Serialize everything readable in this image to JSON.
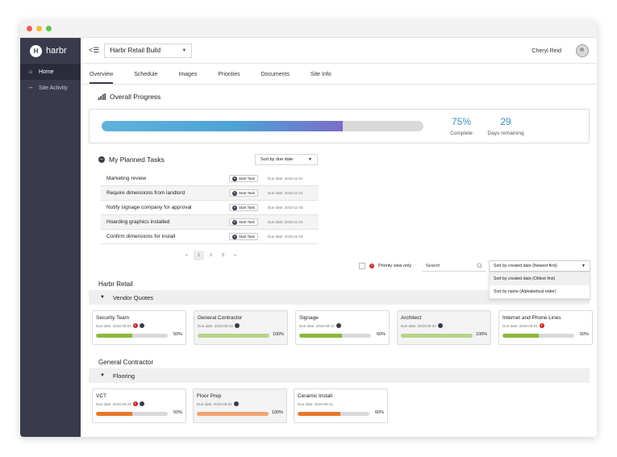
{
  "colors": {
    "sidebar": "#393b4d",
    "accent_blue": "#3d8fbf",
    "green": "#8bb83c",
    "orange": "#e8772b",
    "light_orange": "#f2a470",
    "red": "#c62828"
  },
  "sidebar": {
    "logo": "harbr",
    "items": [
      {
        "label": "Home",
        "icon": "home-icon",
        "active": true
      },
      {
        "label": "Site Activity",
        "icon": "chart-icon",
        "active": false
      }
    ]
  },
  "header": {
    "project": "Harbr Retail Build",
    "user": "Cheryl Reid"
  },
  "tabs": [
    {
      "label": "Overview",
      "active": true
    },
    {
      "label": "Schedule"
    },
    {
      "label": "Images"
    },
    {
      "label": "Priorities"
    },
    {
      "label": "Documents"
    },
    {
      "label": "Site Info"
    }
  ],
  "overall": {
    "title": "Overall Progress",
    "percent_value": 0.75,
    "percent": "75%",
    "percent_label": "Complete",
    "days": "29",
    "days_label": "Days remaining"
  },
  "tasks": {
    "title": "My Planned Tasks",
    "sort": "Sort by due date",
    "start_label": "Start Task",
    "items": [
      {
        "name": "Marketing review",
        "due": "Due date: 2018-11-01"
      },
      {
        "name": "Require dimensions from landlord",
        "due": "Due date: 2018-11-01"
      },
      {
        "name": "Notify signage company for approval",
        "due": "Due date: 2018-11-03"
      },
      {
        "name": "Hoarding graphics installed",
        "due": "Due date: 2018-11-03"
      },
      {
        "name": "Confirm dimensions for install",
        "due": "Due date: 2018-11-04"
      }
    ],
    "pages": [
      "«",
      "1",
      "2",
      "3",
      "»"
    ]
  },
  "filters": {
    "priority_label": "Priority view only",
    "search_placeholder": "Search",
    "sort_selected": "Sort by created date (Newest first)",
    "sort_options": [
      "Sort by created date (Oldest first)",
      "Sort by name (Alphabetical order)"
    ]
  },
  "groups": [
    {
      "title": "Harbr Retail",
      "section": "Vendor Quotes",
      "cards": [
        {
          "title": "Security Team",
          "due": "Due date: 2018-09-01",
          "red": true,
          "dark": true,
          "pct": "50%",
          "value": 0.5,
          "color": "#8bb83c",
          "shaded": false
        },
        {
          "title": "General Contractor",
          "due": "Due date: 2018-09-22",
          "red": false,
          "dark": true,
          "pct": "100%",
          "value": 1.0,
          "color": "#b5d48a",
          "shaded": true
        },
        {
          "title": "Signage",
          "due": "Due date: 2018-09-12",
          "red": false,
          "dark": true,
          "pct": "60%",
          "value": 0.6,
          "color": "#8bb83c",
          "shaded": false
        },
        {
          "title": "Architect",
          "due": "Due date: 2018-09-22",
          "red": false,
          "dark": true,
          "pct": "100%",
          "value": 1.0,
          "color": "#b5d48a",
          "shaded": true
        },
        {
          "title": "Internet and Phone Lines",
          "due": "Due date: 2018-09-01",
          "red": true,
          "dark": false,
          "pct": "50%",
          "value": 0.5,
          "color": "#8bb83c",
          "shaded": false
        }
      ]
    },
    {
      "title": "General Contractor",
      "section": "Flooring",
      "cards": [
        {
          "title": "VCT",
          "due": "Due date: 2018-09-22",
          "red": true,
          "dark": true,
          "pct": "50%",
          "value": 0.5,
          "color": "#e8772b",
          "shaded": false
        },
        {
          "title": "Floor Prep",
          "due": "Due date: 2018-09-01",
          "red": false,
          "dark": true,
          "pct": "100%",
          "value": 1.0,
          "color": "#f2a470",
          "shaded": true
        },
        {
          "title": "Ceramic Install",
          "due": "Due date: 2018-09-12",
          "red": false,
          "dark": false,
          "pct": "60%",
          "value": 0.6,
          "color": "#e8772b",
          "shaded": false
        }
      ]
    }
  ]
}
